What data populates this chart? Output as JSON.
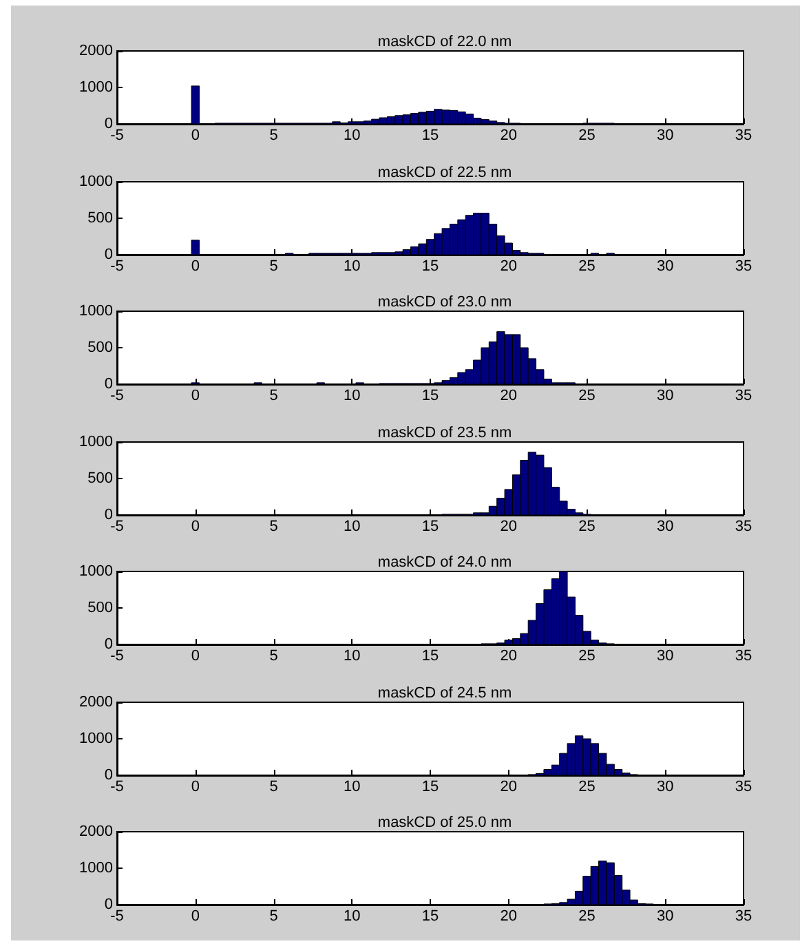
{
  "chart_data": [
    {
      "type": "histogram",
      "title": "maskCD of 22.0 nm",
      "color": "#00007f",
      "xlim": [
        -5,
        35
      ],
      "xticks": [
        -5,
        0,
        5,
        10,
        15,
        20,
        25,
        30,
        35
      ],
      "ylim": [
        0,
        2000
      ],
      "yticks": [
        0,
        1000,
        2000
      ],
      "bins": [
        -0.25,
        0.25,
        0.75,
        1.25,
        1.75,
        2.25,
        2.75,
        3.25,
        3.75,
        4.25,
        4.75,
        5.25,
        5.75,
        6.25,
        6.75,
        7.25,
        7.75,
        8.25,
        8.75,
        9.25,
        9.75,
        10.25,
        10.75,
        11.25,
        11.75,
        12.25,
        12.75,
        13.25,
        13.75,
        14.25,
        14.75,
        15.25,
        15.75,
        16.25,
        16.75,
        17.25,
        17.75,
        18.25,
        18.75,
        19.25,
        19.75,
        20.25,
        20.75,
        21.25,
        21.75,
        22.25,
        22.75,
        23.25,
        23.75,
        24.25,
        24.75,
        25.25,
        25.75,
        26.25,
        26.75
      ],
      "values": [
        1040,
        0,
        0,
        20,
        20,
        20,
        20,
        20,
        20,
        20,
        20,
        20,
        20,
        20,
        20,
        20,
        20,
        20,
        60,
        30,
        60,
        60,
        80,
        130,
        170,
        200,
        230,
        250,
        290,
        320,
        350,
        400,
        380,
        370,
        330,
        270,
        160,
        120,
        80,
        40,
        20,
        20,
        0,
        0,
        0,
        0,
        0,
        0,
        0,
        0,
        20,
        20,
        20,
        20
      ]
    },
    {
      "type": "histogram",
      "title": "maskCD of 22.5 nm",
      "color": "#00007f",
      "xlim": [
        -5,
        35
      ],
      "xticks": [
        -5,
        0,
        5,
        10,
        15,
        20,
        25,
        30,
        35
      ],
      "ylim": [
        0,
        1000
      ],
      "yticks": [
        0,
        500,
        1000
      ],
      "bins": [
        -0.25,
        0.25,
        0.75,
        1.25,
        1.75,
        2.25,
        2.75,
        3.25,
        3.75,
        4.25,
        4.75,
        5.25,
        5.75,
        6.25,
        6.75,
        7.25,
        7.75,
        8.25,
        8.75,
        9.25,
        9.75,
        10.25,
        10.75,
        11.25,
        11.75,
        12.25,
        12.75,
        13.25,
        13.75,
        14.25,
        14.75,
        15.25,
        15.75,
        16.25,
        16.75,
        17.25,
        17.75,
        18.25,
        18.75,
        19.25,
        19.75,
        20.25,
        20.75,
        21.25,
        21.75,
        22.25,
        22.75,
        23.25,
        23.75,
        24.25,
        24.75,
        25.25,
        25.75,
        26.25,
        26.75
      ],
      "values": [
        200,
        0,
        0,
        0,
        0,
        0,
        0,
        0,
        0,
        0,
        0,
        0,
        20,
        0,
        0,
        20,
        20,
        20,
        20,
        20,
        20,
        20,
        20,
        30,
        30,
        30,
        40,
        70,
        110,
        150,
        210,
        290,
        360,
        420,
        480,
        540,
        570,
        570,
        420,
        260,
        160,
        60,
        30,
        20,
        20,
        0,
        0,
        0,
        0,
        0,
        0,
        20,
        0,
        20
      ]
    },
    {
      "type": "histogram",
      "title": "maskCD of 23.0 nm",
      "color": "#00007f",
      "xlim": [
        -5,
        35
      ],
      "xticks": [
        -5,
        0,
        5,
        10,
        15,
        20,
        25,
        30,
        35
      ],
      "ylim": [
        0,
        1000
      ],
      "yticks": [
        0,
        500,
        1000
      ],
      "bins": [
        -0.25,
        0.25,
        0.75,
        1.25,
        1.75,
        2.25,
        2.75,
        3.25,
        3.75,
        4.25,
        4.75,
        5.25,
        5.75,
        6.25,
        6.75,
        7.25,
        7.75,
        8.25,
        8.75,
        9.25,
        9.75,
        10.25,
        10.75,
        11.25,
        11.75,
        12.25,
        12.75,
        13.25,
        13.75,
        14.25,
        14.75,
        15.25,
        15.75,
        16.25,
        16.75,
        17.25,
        17.75,
        18.25,
        18.75,
        19.25,
        19.75,
        20.25,
        20.75,
        21.25,
        21.75,
        22.25,
        22.75,
        23.25,
        23.75,
        24.25
      ],
      "values": [
        20,
        0,
        0,
        0,
        0,
        0,
        0,
        0,
        20,
        0,
        0,
        0,
        0,
        0,
        0,
        0,
        20,
        0,
        0,
        0,
        0,
        20,
        0,
        0,
        10,
        10,
        10,
        10,
        10,
        10,
        10,
        20,
        50,
        90,
        160,
        200,
        330,
        500,
        580,
        720,
        680,
        680,
        500,
        350,
        200,
        70,
        20,
        20,
        20
      ]
    },
    {
      "type": "histogram",
      "title": "maskCD of 23.5 nm",
      "color": "#00007f",
      "xlim": [
        -5,
        35
      ],
      "xticks": [
        -5,
        0,
        5,
        10,
        15,
        20,
        25,
        30,
        35
      ],
      "ylim": [
        0,
        1000
      ],
      "yticks": [
        0,
        500,
        1000
      ],
      "bins": [
        15.75,
        16.25,
        16.75,
        17.25,
        17.75,
        18.25,
        18.75,
        19.25,
        19.75,
        20.25,
        20.75,
        21.25,
        21.75,
        22.25,
        22.75,
        23.25,
        23.75,
        24.25,
        24.75,
        25.25
      ],
      "values": [
        10,
        10,
        10,
        10,
        30,
        30,
        120,
        230,
        350,
        550,
        750,
        860,
        820,
        650,
        380,
        190,
        80,
        30,
        10
      ]
    },
    {
      "type": "histogram",
      "title": "maskCD of 24.0 nm",
      "color": "#00007f",
      "xlim": [
        -5,
        35
      ],
      "xticks": [
        -5,
        0,
        5,
        10,
        15,
        20,
        25,
        30,
        35
      ],
      "ylim": [
        0,
        1000
      ],
      "yticks": [
        0,
        500,
        1000
      ],
      "bins": [
        18.25,
        18.75,
        19.25,
        19.75,
        20.25,
        20.75,
        21.25,
        21.75,
        22.25,
        22.75,
        23.25,
        23.75,
        24.25,
        24.75,
        25.25,
        25.75,
        26.25,
        26.75
      ],
      "values": [
        10,
        10,
        20,
        60,
        80,
        150,
        330,
        560,
        750,
        900,
        1000,
        650,
        400,
        180,
        60,
        20,
        10
      ]
    },
    {
      "type": "histogram",
      "title": "maskCD of 24.5 nm",
      "color": "#00007f",
      "xlim": [
        -5,
        35
      ],
      "xticks": [
        -5,
        0,
        5,
        10,
        15,
        20,
        25,
        30,
        35
      ],
      "ylim": [
        0,
        2000
      ],
      "yticks": [
        0,
        1000,
        2000
      ],
      "bins": [
        21.25,
        21.75,
        22.25,
        22.75,
        23.25,
        23.75,
        24.25,
        24.75,
        25.25,
        25.75,
        26.25,
        26.75,
        27.25,
        27.75,
        28.25
      ],
      "values": [
        20,
        50,
        160,
        280,
        600,
        870,
        1080,
        1000,
        870,
        600,
        300,
        160,
        60,
        20
      ]
    },
    {
      "type": "histogram",
      "title": "maskCD of 25.0 nm",
      "color": "#00007f",
      "xlim": [
        -5,
        35
      ],
      "xticks": [
        -5,
        0,
        5,
        10,
        15,
        20,
        25,
        30,
        35
      ],
      "ylim": [
        0,
        2000
      ],
      "yticks": [
        0,
        1000,
        2000
      ],
      "bins": [
        22.25,
        22.75,
        23.25,
        23.75,
        24.25,
        24.75,
        25.25,
        25.75,
        26.25,
        26.75,
        27.25,
        27.75,
        28.25,
        28.75,
        29.25
      ],
      "values": [
        20,
        30,
        60,
        150,
        370,
        780,
        1050,
        1200,
        1150,
        800,
        400,
        130,
        30,
        20
      ]
    }
  ]
}
